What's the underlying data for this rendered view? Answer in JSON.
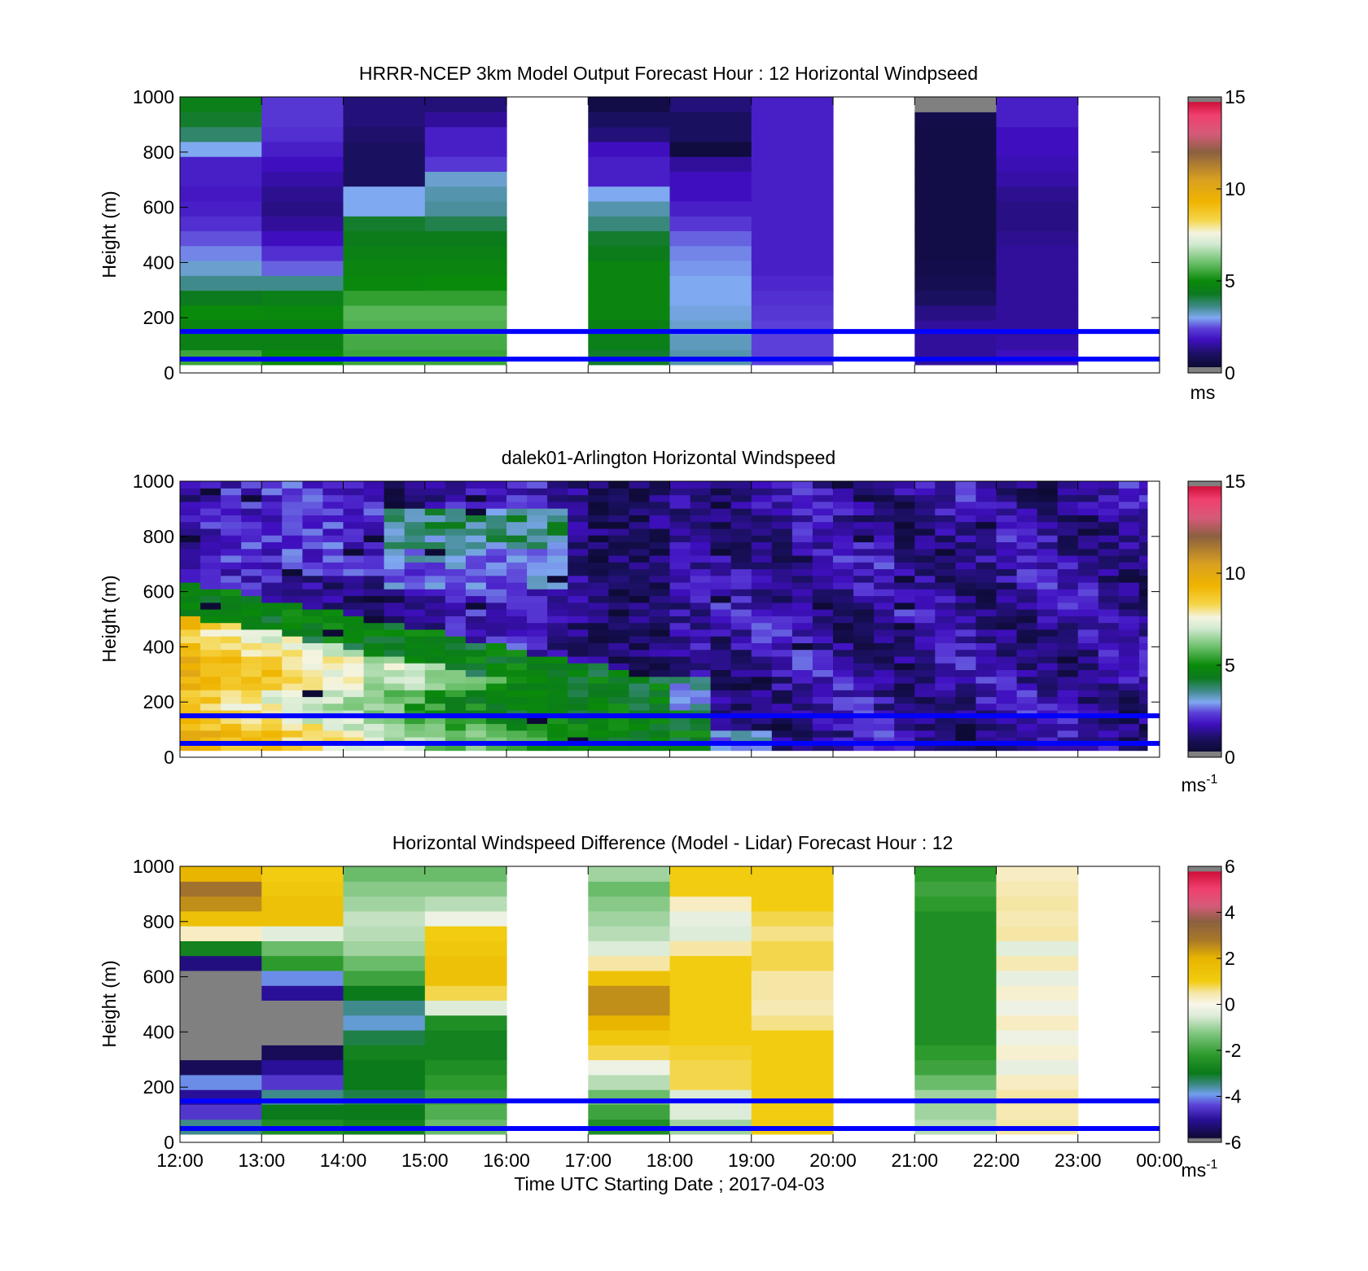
{
  "xlabel": "Time UTC  Starting Date ; 2017-04-03",
  "x_ticks": [
    "12:00",
    "13:00",
    "14:00",
    "15:00",
    "16:00",
    "17:00",
    "18:00",
    "19:00",
    "20:00",
    "21:00",
    "22:00",
    "23:00",
    "00:00"
  ],
  "chart_data": [
    {
      "type": "heatmap",
      "title": "HRRR-NCEP 3km Model Output   Forecast Hour : 12 Horizontal Windpseed",
      "ylabel": "Height (m)",
      "ylim": [
        0,
        1000
      ],
      "y_ticks": [
        "0",
        "200",
        "400",
        "600",
        "800",
        "1000"
      ],
      "colorbar": {
        "ticks": [
          "0",
          "5",
          "10",
          "15"
        ],
        "range": [
          0,
          15
        ],
        "unit": "ms",
        "unit_sup": ""
      },
      "reference_lines_m": [
        50,
        150
      ],
      "colormap": "windspeed",
      "missing_hours": [
        4,
        8,
        11
      ],
      "columns": [
        {
          "hour": 0,
          "values": [
            5.5,
            4.6,
            4.8,
            5.0,
            4.3,
            3.6,
            3.2,
            2.8,
            2.5,
            2.2,
            2.0,
            1.9,
            2.0,
            2.0,
            3.0,
            3.8,
            4.2,
            4.5
          ]
        },
        {
          "hour": 1,
          "values": [
            5.0,
            4.6,
            4.8,
            4.9,
            4.5,
            3.6,
            2.6,
            2.2,
            1.8,
            1.5,
            1.3,
            1.4,
            1.6,
            1.8,
            2.0,
            2.2,
            2.3,
            2.3
          ]
        },
        {
          "hour": 2,
          "values": [
            5.5,
            5.6,
            5.7,
            5.8,
            5.4,
            4.9,
            4.8,
            4.6,
            4.4,
            4.2,
            3.0,
            3.0,
            1.0,
            1.0,
            1.0,
            1.1,
            1.2,
            1.2
          ]
        },
        {
          "hour": 3,
          "values": [
            5.5,
            5.6,
            5.7,
            5.8,
            5.4,
            5.0,
            4.8,
            4.6,
            4.4,
            4.0,
            3.5,
            3.4,
            3.2,
            2.3,
            2.0,
            2.0,
            1.5,
            1.2
          ]
        },
        {
          "hour": 5,
          "values": [
            4.2,
            4.5,
            4.6,
            4.8,
            4.8,
            4.8,
            4.8,
            4.4,
            4.2,
            3.7,
            3.4,
            3.0,
            2.0,
            2.0,
            1.8,
            1.2,
            1.0,
            0.6
          ]
        },
        {
          "hour": 6,
          "values": [
            3.4,
            3.3,
            3.2,
            3.1,
            3.0,
            3.0,
            2.9,
            2.8,
            2.6,
            2.3,
            2.0,
            1.8,
            1.8,
            1.5,
            0.5,
            1.0,
            1.0,
            1.2
          ]
        },
        {
          "hour": 7,
          "values": [
            2.4,
            2.4,
            2.4,
            2.3,
            2.2,
            2.1,
            2.0,
            2.0,
            2.0,
            2.0,
            2.0,
            2.0,
            2.0,
            2.0,
            2.0,
            2.0,
            2.0,
            2.0
          ]
        },
        {
          "hour": 9,
          "values": [
            1.5,
            1.5,
            1.5,
            1.3,
            1.0,
            0.8,
            0.7,
            0.6,
            0.6,
            0.6,
            0.6,
            0.6,
            0.6,
            0.6,
            0.6,
            0.6,
            0.7,
            -1
          ]
        },
        {
          "hour": 10,
          "values": [
            1.8,
            1.6,
            1.5,
            1.5,
            1.5,
            1.5,
            1.5,
            1.5,
            1.4,
            1.3,
            1.3,
            1.4,
            1.6,
            1.7,
            1.8,
            1.8,
            2.0,
            2.0
          ]
        }
      ]
    },
    {
      "type": "heatmap",
      "title": "dalek01-Arlington  Horizontal Windspeed",
      "ylabel": "Height (m)",
      "ylim": [
        0,
        1000
      ],
      "y_ticks": [
        "0",
        "200",
        "400",
        "600",
        "800",
        "1000"
      ],
      "colorbar": {
        "ticks": [
          "0",
          "5",
          "10",
          "15"
        ],
        "range": [
          0,
          15
        ],
        "unit": "ms",
        "unit_sup": "-1"
      },
      "reference_lines_m": [
        50,
        150
      ],
      "colormap": "windspeed",
      "time_step_hours": 0.25,
      "height_levels": 40
    },
    {
      "type": "heatmap",
      "title": "Horizontal Windspeed Difference (Model - Lidar) Forecast Hour : 12",
      "ylabel": "Height (m)",
      "ylim": [
        0,
        1000
      ],
      "y_ticks": [
        "0",
        "200",
        "400",
        "600",
        "800",
        "1000"
      ],
      "colorbar": {
        "ticks": [
          "-6",
          "-4",
          "-2",
          "0",
          "2",
          "4",
          "6"
        ],
        "range": [
          -6,
          6
        ],
        "unit": "ms",
        "unit_sup": "-1"
      },
      "reference_lines_m": [
        50,
        150
      ],
      "colormap": "difference",
      "missing_hours": [
        4,
        8,
        11
      ],
      "columns": [
        {
          "hour": 0,
          "values": [
            -3.5,
            -4.5,
            -5.0,
            -4.0,
            -5.5,
            -6.5,
            -6.5,
            -6.5,
            -6.5,
            -6.5,
            -6.5,
            -5.2,
            -2.8,
            0.3,
            1.5,
            2.5,
            3.0,
            2.0
          ]
        },
        {
          "hour": 1,
          "values": [
            -2.5,
            -3.0,
            -3.5,
            -4.5,
            -5.0,
            -5.5,
            -6.5,
            -6.5,
            -6.5,
            -5.0,
            -4.0,
            -2.2,
            -1.5,
            -0.4,
            1.5,
            1.5,
            1.2,
            1.0
          ]
        },
        {
          "hour": 2,
          "values": [
            -2.8,
            -3.0,
            -3.2,
            -3.0,
            -3.0,
            -2.8,
            -3.2,
            -3.8,
            -3.5,
            -3.0,
            -2.0,
            -1.5,
            -1.0,
            -0.8,
            -0.7,
            -1.0,
            -1.2,
            -1.5
          ]
        },
        {
          "hour": 3,
          "values": [
            -1.5,
            -1.8,
            -2.0,
            -2.2,
            -2.5,
            -2.8,
            -2.8,
            -2.5,
            -0.5,
            0.8,
            1.5,
            1.5,
            1.2,
            1.0,
            -0.2,
            -0.8,
            -1.2,
            -1.5
          ]
        },
        {
          "hour": 5,
          "values": [
            -2.5,
            -2.0,
            -1.5,
            -0.8,
            -0.2,
            0.8,
            1.2,
            2.0,
            2.5,
            2.5,
            1.5,
            0.5,
            -0.5,
            -0.8,
            -1.0,
            -1.2,
            -1.5,
            -1.0
          ]
        },
        {
          "hour": 6,
          "values": [
            -1.0,
            -0.5,
            -0.5,
            0.8,
            0.8,
            0.9,
            1.0,
            1.0,
            1.0,
            1.0,
            1.0,
            1.0,
            0.5,
            -0.5,
            -0.3,
            0.3,
            1.0,
            1.0
          ]
        },
        {
          "hour": 7,
          "values": [
            1.0,
            1.0,
            1.0,
            1.0,
            1.0,
            1.0,
            1.0,
            0.6,
            0.4,
            0.5,
            0.5,
            0.8,
            0.8,
            0.6,
            0.8,
            1.0,
            1.0,
            1.0
          ]
        },
        {
          "hour": 9,
          "values": [
            -0.8,
            -1.0,
            -1.0,
            -1.5,
            -2.0,
            -2.2,
            -2.5,
            -2.5,
            -2.5,
            -2.5,
            -2.5,
            -2.5,
            -2.5,
            -2.5,
            -2.5,
            -2.2,
            -2.0,
            -2.2
          ]
        },
        {
          "hour": 10,
          "values": [
            0.5,
            0.4,
            0.5,
            0.3,
            -0.3,
            0.2,
            -0.2,
            0.3,
            -0.2,
            0.2,
            -0.3,
            0.4,
            -0.4,
            0.5,
            0.4,
            0.5,
            0.4,
            0.3
          ]
        }
      ]
    }
  ]
}
